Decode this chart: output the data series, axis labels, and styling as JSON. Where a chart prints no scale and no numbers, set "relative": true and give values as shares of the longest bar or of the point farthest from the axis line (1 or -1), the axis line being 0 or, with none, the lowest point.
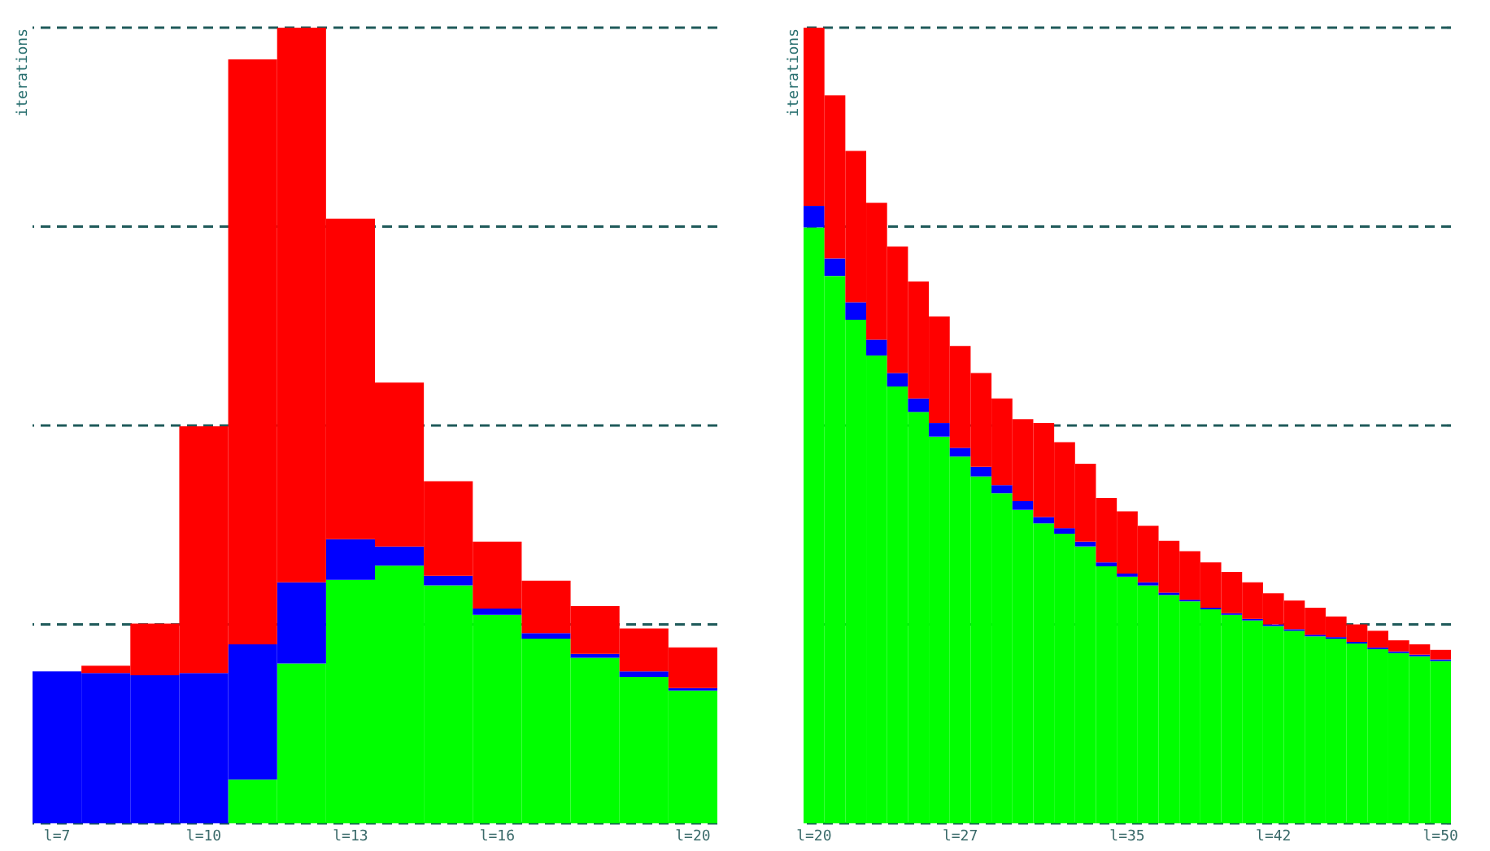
{
  "chart_data": [
    {
      "type": "bar",
      "stacked": true,
      "relative": true,
      "ylabel": "iterations",
      "categories": [
        "l=7",
        null,
        null,
        "l=10",
        null,
        null,
        "l=13",
        null,
        null,
        "l=16",
        null,
        null,
        null,
        "l=20"
      ],
      "series": [
        {
          "color": "#00ff00",
          "values": [
            0,
            0,
            0,
            0,
            0.055,
            0.201,
            0.306,
            0.324,
            0.299,
            0.262,
            0.232,
            0.208,
            0.184,
            0.167
          ]
        },
        {
          "color": "#0000ff",
          "values": [
            0.191,
            0.189,
            0.186,
            0.189,
            0.17,
            0.102,
            0.051,
            0.024,
            0.012,
            0.008,
            0.007,
            0.005,
            0.007,
            0.003
          ]
        },
        {
          "color": "#ff0000",
          "values": [
            0,
            0.009,
            0.065,
            0.31,
            0.735,
            0.697,
            0.403,
            0.206,
            0.119,
            0.084,
            0.066,
            0.06,
            0.054,
            0.051
          ]
        }
      ],
      "ref_lines": [
        {
          "axis": "y",
          "value": 0,
          "color": "#1f5a5a",
          "line_style": "dashed"
        },
        {
          "axis": "y",
          "value": 0.25,
          "color": "#1f5a5a",
          "line_style": "dashed"
        },
        {
          "axis": "y",
          "value": 0.5,
          "color": "#1f5a5a",
          "line_style": "dashed"
        },
        {
          "axis": "y",
          "value": 0.75,
          "color": "#1f5a5a",
          "line_style": "dashed"
        },
        {
          "axis": "y",
          "value": 1,
          "color": "#1f5a5a",
          "line_style": "dashed"
        }
      ]
    },
    {
      "type": "bar",
      "stacked": true,
      "relative": true,
      "ylabel": "iterations",
      "categories": [
        "l=20",
        null,
        null,
        null,
        null,
        null,
        null,
        "l=27",
        null,
        null,
        null,
        null,
        null,
        null,
        null,
        "l=35",
        null,
        null,
        null,
        null,
        null,
        null,
        "l=42",
        null,
        null,
        null,
        null,
        null,
        null,
        null,
        "l=50"
      ],
      "series": [
        {
          "color": "#00ff00",
          "values": [
            0.749,
            0.688,
            0.633,
            0.588,
            0.549,
            0.517,
            0.486,
            0.461,
            0.436,
            0.415,
            0.394,
            0.377,
            0.364,
            0.348,
            0.323,
            0.31,
            0.299,
            0.287,
            0.279,
            0.269,
            0.262,
            0.255,
            0.248,
            0.242,
            0.235,
            0.232,
            0.226,
            0.219,
            0.214,
            0.21,
            0.204
          ]
        },
        {
          "color": "#0000ff",
          "values": [
            0.027,
            0.022,
            0.022,
            0.02,
            0.017,
            0.017,
            0.017,
            0.011,
            0.012,
            0.01,
            0.011,
            0.008,
            0.007,
            0.006,
            0.005,
            0.004,
            0.004,
            0.003,
            0.002,
            0.002,
            0.002,
            0.002,
            0.002,
            0.002,
            0.002,
            0.002,
            0.002,
            0.002,
            0.002,
            0.002,
            0.002
          ]
        },
        {
          "color": "#ff0000",
          "values": [
            0.224,
            0.205,
            0.19,
            0.172,
            0.159,
            0.147,
            0.134,
            0.128,
            0.118,
            0.109,
            0.103,
            0.118,
            0.108,
            0.098,
            0.081,
            0.078,
            0.071,
            0.065,
            0.061,
            0.057,
            0.052,
            0.046,
            0.039,
            0.036,
            0.034,
            0.026,
            0.022,
            0.021,
            0.014,
            0.013,
            0.012
          ]
        }
      ],
      "ref_lines": [
        {
          "axis": "y",
          "value": 0,
          "color": "#1f5a5a",
          "line_style": "dashed"
        },
        {
          "axis": "y",
          "value": 0.25,
          "color": "#1f5a5a",
          "line_style": "dashed"
        },
        {
          "axis": "y",
          "value": 0.5,
          "color": "#1f5a5a",
          "line_style": "dashed"
        },
        {
          "axis": "y",
          "value": 0.75,
          "color": "#1f5a5a",
          "line_style": "dashed"
        },
        {
          "axis": "y",
          "value": 1,
          "color": "#1f5a5a",
          "line_style": "dashed"
        }
      ]
    }
  ]
}
